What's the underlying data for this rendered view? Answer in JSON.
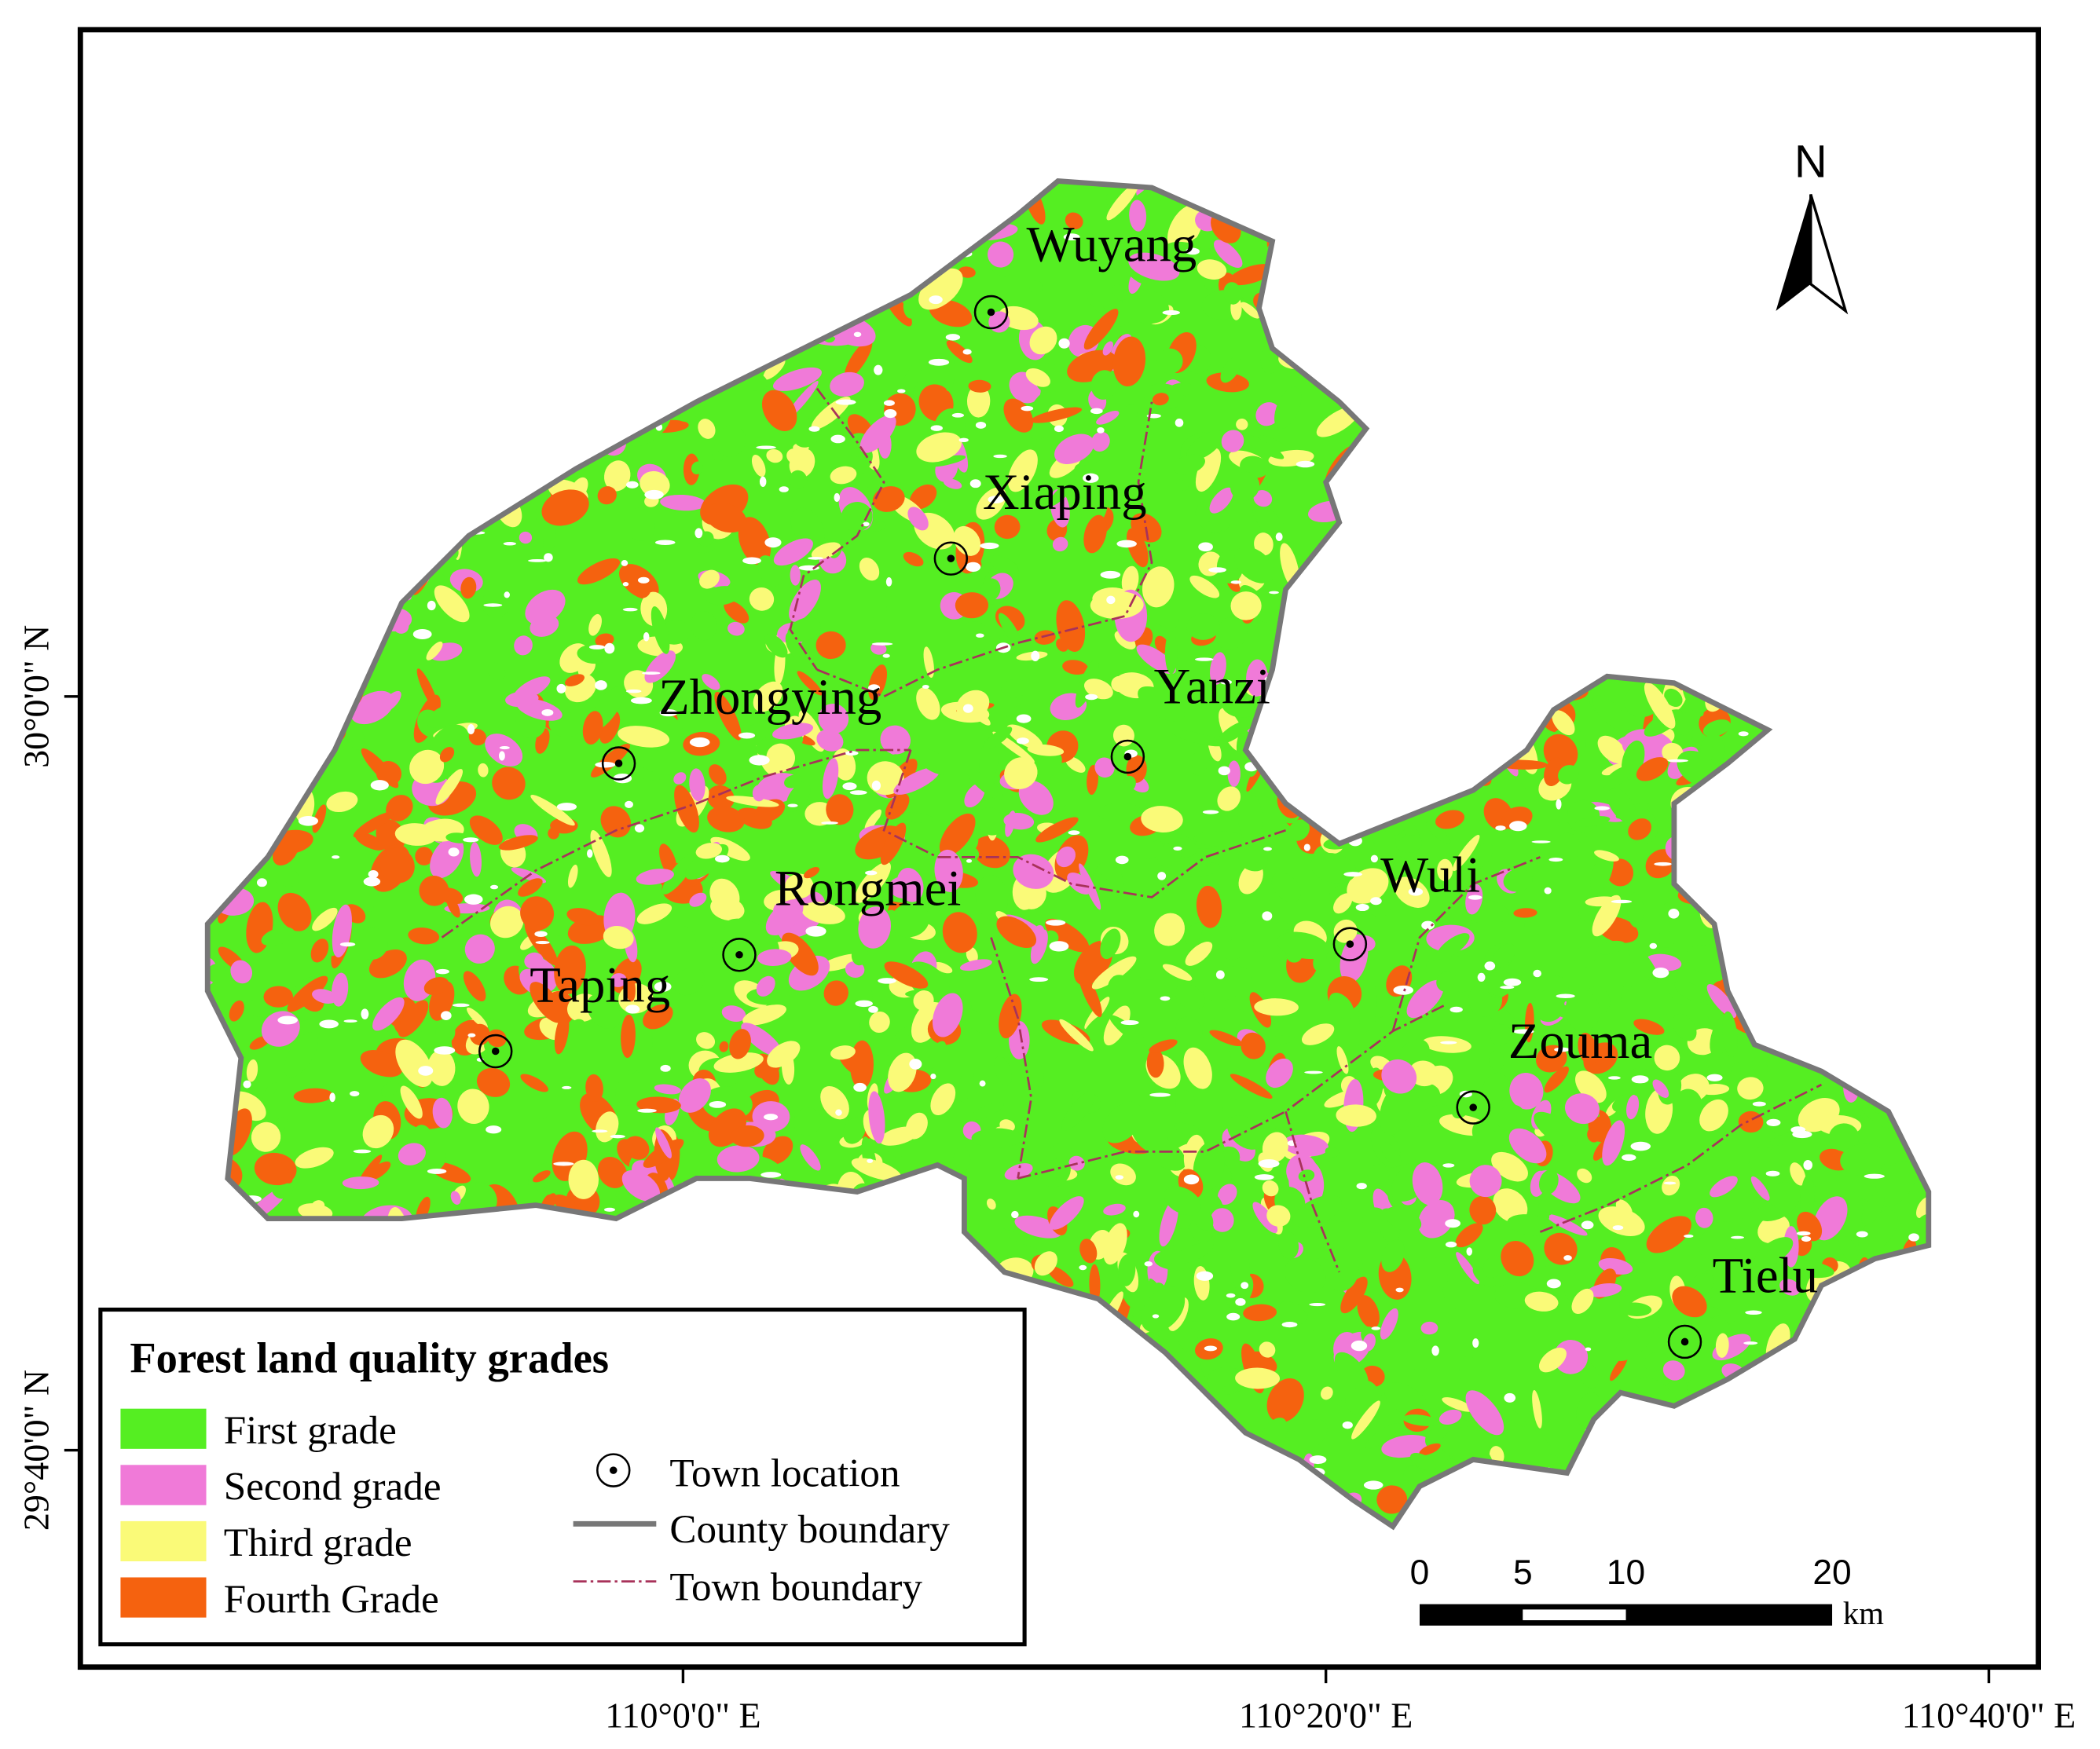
{
  "map": {
    "towns": [
      {
        "name": "Wuyang"
      },
      {
        "name": "Xiaping"
      },
      {
        "name": "Zhongying"
      },
      {
        "name": "Yanzi"
      },
      {
        "name": "Rongmei"
      },
      {
        "name": "Taping"
      },
      {
        "name": "Wuli"
      },
      {
        "name": "Zouma"
      },
      {
        "name": "Tielu"
      }
    ],
    "x_axis_labels": [
      "110°0'0\" E",
      "110°20'0\" E",
      "110°40'0\" E"
    ],
    "y_axis_labels": [
      "30°0'0\" N",
      "29°40'0\" N"
    ],
    "north_label": "N",
    "legend": {
      "title": "Forest land quality grades",
      "grades": [
        {
          "label": "First grade",
          "color": "#55ee22"
        },
        {
          "label": "Second grade",
          "color": "#f07ad8"
        },
        {
          "label": "Third grade",
          "color": "#fafa78"
        },
        {
          "label": "Fourth Grade",
          "color": "#f5620f"
        }
      ],
      "symbols": [
        "Town location",
        "County boundary",
        "Town boundary"
      ]
    },
    "scale_bar": {
      "ticks": [
        0,
        5,
        10,
        20
      ],
      "unit": "km"
    }
  }
}
